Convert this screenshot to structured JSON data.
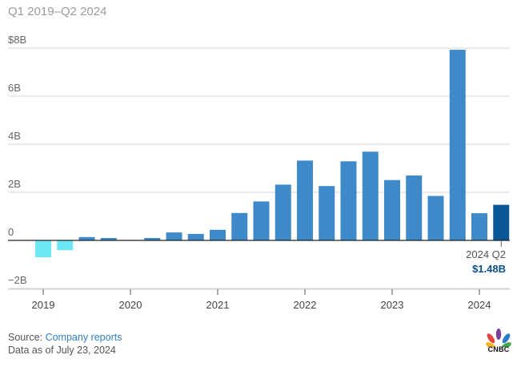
{
  "subtitle": "Q1 2019–Q2 2024",
  "chart_data": {
    "type": "bar",
    "title": "",
    "subtitle": "Q1 2019–Q2 2024",
    "ylim": [
      -2,
      8
    ],
    "yticks": [
      {
        "value": 8,
        "label": "$8B"
      },
      {
        "value": 6,
        "label": "6B"
      },
      {
        "value": 4,
        "label": "4B"
      },
      {
        "value": 2,
        "label": "2B"
      },
      {
        "value": 0,
        "label": "0"
      },
      {
        "value": -2,
        "label": "−2B"
      }
    ],
    "categories": [
      "2019 Q1",
      "2019 Q2",
      "2019 Q3",
      "2019 Q4",
      "2020 Q1",
      "2020 Q2",
      "2020 Q3",
      "2020 Q4",
      "2021 Q1",
      "2021 Q2",
      "2021 Q3",
      "2021 Q4",
      "2022 Q1",
      "2022 Q2",
      "2022 Q3",
      "2022 Q4",
      "2023 Q1",
      "2023 Q2",
      "2023 Q3",
      "2023 Q4",
      "2024 Q1",
      "2024 Q2"
    ],
    "values": [
      -0.7,
      -0.41,
      0.14,
      0.1,
      0.02,
      0.1,
      0.33,
      0.27,
      0.44,
      1.14,
      1.62,
      2.32,
      3.32,
      2.26,
      3.29,
      3.69,
      2.51,
      2.7,
      1.85,
      7.93,
      1.13,
      1.48
    ],
    "xticks": [
      "2019",
      "2020",
      "2021",
      "2022",
      "2023",
      "2024"
    ],
    "grid": true,
    "colors": {
      "positive": "#3d89c9",
      "negative": "#6de8f5",
      "highlight": "#0b5694"
    },
    "annotation": {
      "period": "2024 Q2",
      "value": "$1.48B"
    }
  },
  "footer": {
    "source_label": "Source:",
    "source_link": "Company reports",
    "date_note": "Data as of July 23, 2024"
  },
  "logo": {
    "text": "CNBC",
    "icon": "peacock-logo-icon"
  }
}
